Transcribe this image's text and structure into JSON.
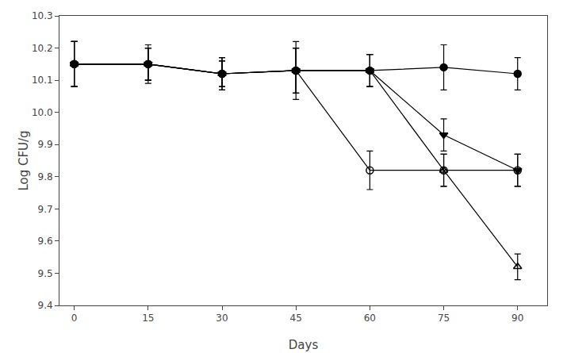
{
  "chart_data": {
    "type": "line",
    "x": [
      0,
      15,
      30,
      45,
      60,
      75,
      90
    ],
    "series": [
      {
        "color": "black",
        "marker": "circle",
        "values": [
          10.15,
          10.15,
          10.12,
          10.13,
          10.13,
          10.14,
          10.12
        ],
        "errors": [
          0.07,
          0.05,
          0.04,
          0.07,
          0.05,
          0.07,
          0.05
        ]
      },
      {
        "color": "black",
        "marker": "circle-open",
        "values": [
          10.15,
          10.15,
          10.12,
          10.13,
          9.82,
          9.82,
          9.82
        ],
        "errors": [
          0.07,
          0.06,
          0.05,
          0.07,
          0.06,
          0.05,
          0.05
        ]
      },
      {
        "color": "black",
        "marker": "triangle-down",
        "values": [
          10.15,
          10.15,
          10.12,
          10.13,
          10.13,
          9.93,
          9.82
        ],
        "errors": [
          0.07,
          0.05,
          0.04,
          0.09,
          0.05,
          0.05,
          0.05
        ]
      },
      {
        "color": "black",
        "marker": "triangle-up-open",
        "values": [
          10.15,
          10.15,
          10.12,
          10.13,
          10.13,
          9.82,
          9.52
        ],
        "errors": [
          0.07,
          0.05,
          0.05,
          0.07,
          0.05,
          0.05,
          0.04
        ]
      }
    ],
    "xlabel": "Days",
    "ylabel": "Log CFU/g",
    "xlim": [
      -3,
      96
    ],
    "ylim": [
      9.4,
      10.3
    ],
    "xticks": [
      0,
      15,
      30,
      45,
      60,
      75,
      90
    ],
    "yticks": [
      9.4,
      9.5,
      9.6,
      9.7,
      9.8,
      9.9,
      {
        "value": 10.0,
        "label": "10.0"
      },
      10.1,
      10.2,
      10.3
    ],
    "grid": false
  }
}
